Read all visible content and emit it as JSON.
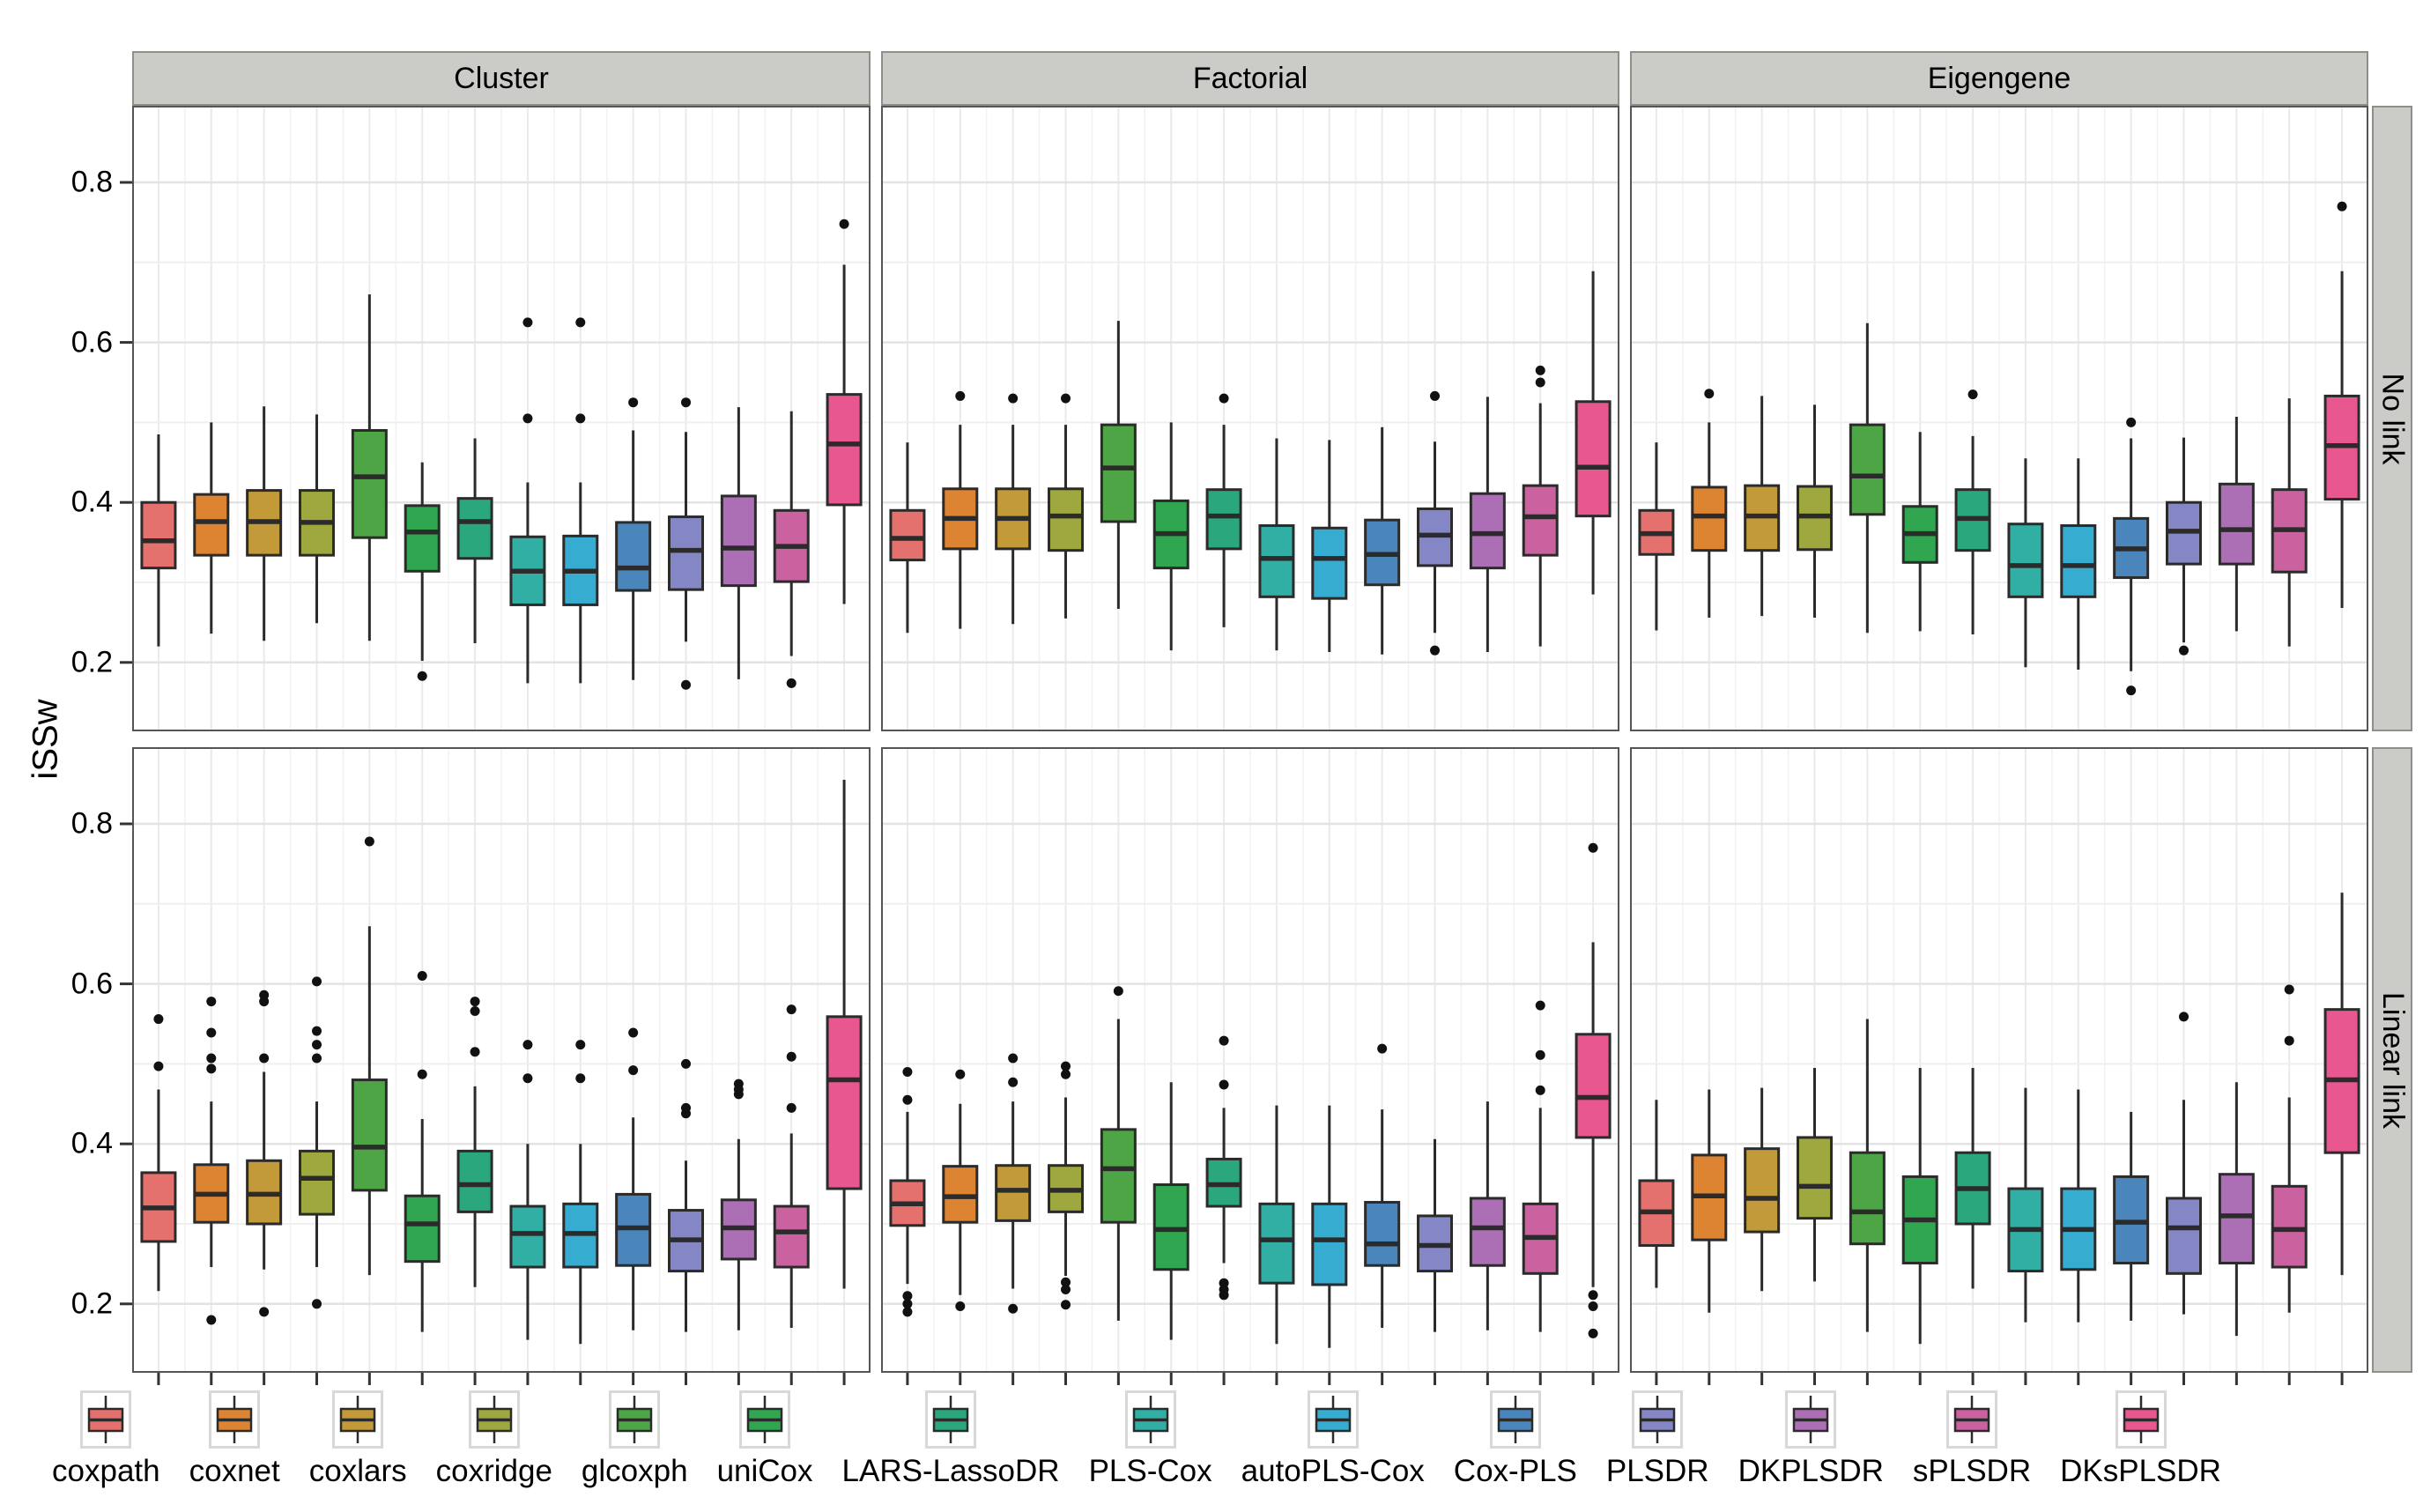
{
  "figure_type": "faceted boxplot (ggplot2 style)",
  "y_axis": {
    "title": "iSSw",
    "tick_labels": [
      "0.8",
      "0.6",
      "0.4",
      "0.2"
    ],
    "tick_values": [
      0.8,
      0.6,
      0.4,
      0.2
    ]
  },
  "facets": {
    "columns": [
      "Cluster",
      "Factorial",
      "Eigengene"
    ],
    "rows": [
      "No link",
      "Linear link"
    ]
  },
  "colors": {
    "strip_background": "#cbcbc7",
    "panel_background": "#ffffff",
    "grid_major": "#e3e3e3",
    "grid_minor": "#efefef",
    "box_stroke": "#2b2b2b",
    "outlier": "#111111"
  },
  "chart_data": {
    "type": "boxplot",
    "ylabel": "iSSw",
    "y_ticks": [
      0.2,
      0.4,
      0.6,
      0.8
    ],
    "ylim": [
      0.114,
      0.896
    ],
    "grid": "on",
    "legend_position": "bottom",
    "col_facets": [
      "Cluster",
      "Factorial",
      "Eigengene"
    ],
    "row_facets": [
      "No link",
      "Linear link"
    ],
    "methods": [
      {
        "label": "coxpath",
        "color": "#e4716e"
      },
      {
        "label": "coxnet",
        "color": "#dd8433"
      },
      {
        "label": "coxlars",
        "color": "#c39a3a"
      },
      {
        "label": "coxridge",
        "color": "#9fa83f"
      },
      {
        "label": "glcoxph",
        "color": "#4ea546"
      },
      {
        "label": "uniCox",
        "color": "#2fa64f"
      },
      {
        "label": "LARS-LassoDR",
        "color": "#2ba77d"
      },
      {
        "label": "PLS-Cox",
        "color": "#31afa4"
      },
      {
        "label": "autoPLS-Cox",
        "color": "#35acd0"
      },
      {
        "label": "Cox-PLS",
        "color": "#4a86bc"
      },
      {
        "label": "PLSDR",
        "color": "#8486c6"
      },
      {
        "label": "DKPLSDR",
        "color": "#ac6fb5"
      },
      {
        "label": "sPLSDR",
        "color": "#ca62a0"
      },
      {
        "label": "DKsPLSDR",
        "color": "#e8578f"
      }
    ],
    "box_format": [
      "whisker_low",
      "q1",
      "median",
      "q3",
      "whisker_high",
      "outliers"
    ],
    "panels": [
      {
        "row": "No link",
        "col": "Cluster",
        "boxes": [
          [
            0.22,
            0.318,
            0.352,
            0.4,
            0.485,
            []
          ],
          [
            0.236,
            0.334,
            0.376,
            0.41,
            0.5,
            []
          ],
          [
            0.227,
            0.334,
            0.376,
            0.415,
            0.52,
            []
          ],
          [
            0.249,
            0.334,
            0.375,
            0.415,
            0.51,
            []
          ],
          [
            0.227,
            0.356,
            0.432,
            0.49,
            0.66,
            []
          ],
          [
            0.202,
            0.314,
            0.363,
            0.396,
            0.45,
            [
              0.183
            ]
          ],
          [
            0.224,
            0.33,
            0.376,
            0.405,
            0.48,
            []
          ],
          [
            0.174,
            0.272,
            0.314,
            0.357,
            0.425,
            [
              0.505,
              0.625
            ]
          ],
          [
            0.174,
            0.272,
            0.314,
            0.358,
            0.425,
            [
              0.505,
              0.625
            ]
          ],
          [
            0.178,
            0.29,
            0.318,
            0.375,
            0.49,
            [
              0.525
            ]
          ],
          [
            0.226,
            0.291,
            0.34,
            0.382,
            0.488,
            [
              0.525,
              0.172
            ]
          ],
          [
            0.179,
            0.296,
            0.343,
            0.408,
            0.519,
            []
          ],
          [
            0.208,
            0.301,
            0.345,
            0.39,
            0.514,
            [
              0.174
            ]
          ],
          [
            0.273,
            0.397,
            0.473,
            0.535,
            0.697,
            [
              0.748
            ]
          ]
        ]
      },
      {
        "row": "No link",
        "col": "Factorial",
        "boxes": [
          [
            0.237,
            0.328,
            0.355,
            0.39,
            0.475,
            []
          ],
          [
            0.242,
            0.342,
            0.38,
            0.417,
            0.497,
            [
              0.533
            ]
          ],
          [
            0.248,
            0.342,
            0.38,
            0.417,
            0.497,
            [
              0.53
            ]
          ],
          [
            0.255,
            0.34,
            0.383,
            0.417,
            0.497,
            [
              0.53
            ]
          ],
          [
            0.267,
            0.376,
            0.443,
            0.497,
            0.627,
            []
          ],
          [
            0.215,
            0.318,
            0.361,
            0.402,
            0.5,
            []
          ],
          [
            0.244,
            0.342,
            0.383,
            0.416,
            0.497,
            [
              0.53
            ]
          ],
          [
            0.215,
            0.282,
            0.33,
            0.371,
            0.48,
            []
          ],
          [
            0.213,
            0.28,
            0.33,
            0.368,
            0.478,
            []
          ],
          [
            0.21,
            0.297,
            0.335,
            0.378,
            0.494,
            []
          ],
          [
            0.237,
            0.321,
            0.359,
            0.392,
            0.476,
            [
              0.533,
              0.215
            ]
          ],
          [
            0.213,
            0.318,
            0.361,
            0.411,
            0.532,
            []
          ],
          [
            0.22,
            0.334,
            0.382,
            0.421,
            0.524,
            [
              0.55,
              0.565
            ]
          ],
          [
            0.285,
            0.383,
            0.444,
            0.526,
            0.689,
            []
          ]
        ]
      },
      {
        "row": "No link",
        "col": "Eigengene",
        "boxes": [
          [
            0.24,
            0.335,
            0.361,
            0.39,
            0.475,
            []
          ],
          [
            0.256,
            0.34,
            0.383,
            0.419,
            0.5,
            [
              0.536
            ]
          ],
          [
            0.258,
            0.34,
            0.383,
            0.421,
            0.533,
            []
          ],
          [
            0.256,
            0.341,
            0.383,
            0.42,
            0.522,
            []
          ],
          [
            0.237,
            0.385,
            0.433,
            0.497,
            0.624,
            []
          ],
          [
            0.239,
            0.325,
            0.361,
            0.395,
            0.488,
            []
          ],
          [
            0.235,
            0.34,
            0.38,
            0.416,
            0.483,
            [
              0.535
            ]
          ],
          [
            0.194,
            0.282,
            0.321,
            0.373,
            0.455,
            []
          ],
          [
            0.191,
            0.282,
            0.321,
            0.371,
            0.455,
            []
          ],
          [
            0.189,
            0.306,
            0.342,
            0.38,
            0.48,
            [
              0.5,
              0.165
            ]
          ],
          [
            0.225,
            0.323,
            0.364,
            0.4,
            0.481,
            [
              0.215
            ]
          ],
          [
            0.239,
            0.323,
            0.366,
            0.423,
            0.507,
            []
          ],
          [
            0.22,
            0.313,
            0.366,
            0.416,
            0.53,
            []
          ],
          [
            0.268,
            0.404,
            0.471,
            0.533,
            0.689,
            [
              0.77
            ]
          ]
        ]
      },
      {
        "row": "Linear link",
        "col": "Cluster",
        "boxes": [
          [
            0.216,
            0.278,
            0.32,
            0.364,
            0.468,
            [
              0.556,
              0.497
            ]
          ],
          [
            0.246,
            0.302,
            0.337,
            0.374,
            0.453,
            [
              0.578,
              0.539,
              0.507,
              0.494,
              0.18
            ]
          ],
          [
            0.243,
            0.3,
            0.337,
            0.379,
            0.49,
            [
              0.586,
              0.578,
              0.507,
              0.19
            ]
          ],
          [
            0.246,
            0.312,
            0.357,
            0.391,
            0.453,
            [
              0.603,
              0.541,
              0.524,
              0.507,
              0.2
            ]
          ],
          [
            0.236,
            0.342,
            0.396,
            0.48,
            0.672,
            [
              0.778
            ]
          ],
          [
            0.165,
            0.253,
            0.3,
            0.335,
            0.431,
            [
              0.61,
              0.487
            ]
          ],
          [
            0.221,
            0.315,
            0.349,
            0.391,
            0.472,
            [
              0.578,
              0.566,
              0.515
            ]
          ],
          [
            0.155,
            0.246,
            0.288,
            0.322,
            0.4,
            [
              0.524,
              0.482
            ]
          ],
          [
            0.15,
            0.246,
            0.288,
            0.325,
            0.4,
            [
              0.524,
              0.482
            ]
          ],
          [
            0.167,
            0.248,
            0.295,
            0.337,
            0.433,
            [
              0.539,
              0.492
            ]
          ],
          [
            0.165,
            0.241,
            0.28,
            0.317,
            0.379,
            [
              0.5,
              0.445,
              0.438
            ]
          ],
          [
            0.167,
            0.256,
            0.295,
            0.33,
            0.406,
            [
              0.475,
              0.468,
              0.462
            ]
          ],
          [
            0.17,
            0.246,
            0.29,
            0.322,
            0.413,
            [
              0.568,
              0.509,
              0.445
            ]
          ],
          [
            0.219,
            0.344,
            0.48,
            0.559,
            0.855,
            []
          ]
        ]
      },
      {
        "row": "Linear link",
        "col": "Factorial",
        "boxes": [
          [
            0.225,
            0.298,
            0.325,
            0.354,
            0.44,
            [
              0.49,
              0.455,
              0.21,
              0.2,
              0.19
            ]
          ],
          [
            0.211,
            0.302,
            0.334,
            0.372,
            0.45,
            [
              0.487,
              0.197
            ]
          ],
          [
            0.219,
            0.304,
            0.342,
            0.373,
            0.453,
            [
              0.507,
              0.477,
              0.194
            ]
          ],
          [
            0.235,
            0.315,
            0.342,
            0.373,
            0.458,
            [
              0.497,
              0.487,
              0.227,
              0.218,
              0.199
            ]
          ],
          [
            0.179,
            0.302,
            0.369,
            0.418,
            0.556,
            [
              0.591
            ]
          ],
          [
            0.155,
            0.243,
            0.293,
            0.349,
            0.477,
            []
          ],
          [
            0.251,
            0.322,
            0.349,
            0.381,
            0.445,
            [
              0.529,
              0.474,
              0.226,
              0.218,
              0.211
            ]
          ],
          [
            0.15,
            0.226,
            0.28,
            0.325,
            0.448,
            []
          ],
          [
            0.145,
            0.224,
            0.28,
            0.325,
            0.448,
            []
          ],
          [
            0.17,
            0.248,
            0.275,
            0.327,
            0.443,
            [
              0.519
            ]
          ],
          [
            0.165,
            0.241,
            0.273,
            0.31,
            0.406,
            []
          ],
          [
            0.167,
            0.248,
            0.295,
            0.332,
            0.453,
            []
          ],
          [
            0.165,
            0.238,
            0.283,
            0.325,
            0.445,
            [
              0.573,
              0.511,
              0.467
            ]
          ],
          [
            0.221,
            0.408,
            0.458,
            0.537,
            0.652,
            [
              0.77,
              0.211,
              0.197,
              0.163
            ]
          ]
        ]
      },
      {
        "row": "Linear link",
        "col": "Eigengene",
        "boxes": [
          [
            0.22,
            0.273,
            0.315,
            0.354,
            0.455,
            []
          ],
          [
            0.189,
            0.28,
            0.335,
            0.386,
            0.468,
            []
          ],
          [
            0.216,
            0.29,
            0.332,
            0.394,
            0.47,
            []
          ],
          [
            0.228,
            0.307,
            0.347,
            0.408,
            0.495,
            []
          ],
          [
            0.165,
            0.275,
            0.315,
            0.389,
            0.556,
            []
          ],
          [
            0.15,
            0.251,
            0.305,
            0.359,
            0.495,
            []
          ],
          [
            0.219,
            0.3,
            0.344,
            0.389,
            0.495,
            []
          ],
          [
            0.177,
            0.241,
            0.293,
            0.344,
            0.47,
            []
          ],
          [
            0.177,
            0.243,
            0.293,
            0.344,
            0.468,
            []
          ],
          [
            0.179,
            0.251,
            0.302,
            0.359,
            0.44,
            []
          ],
          [
            0.187,
            0.238,
            0.295,
            0.332,
            0.455,
            [
              0.559
            ]
          ],
          [
            0.16,
            0.251,
            0.31,
            0.362,
            0.477,
            []
          ],
          [
            0.189,
            0.246,
            0.293,
            0.347,
            0.458,
            [
              0.593,
              0.529
            ]
          ],
          [
            0.236,
            0.389,
            0.48,
            0.568,
            0.714,
            []
          ]
        ]
      }
    ]
  }
}
